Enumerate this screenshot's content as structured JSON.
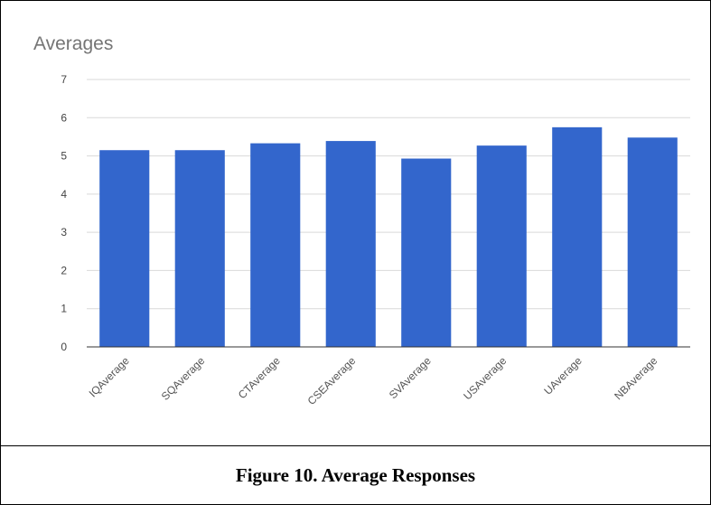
{
  "caption": "Figure 10.  Average Responses",
  "chart_data": {
    "type": "bar",
    "title": "Averages",
    "xlabel": "",
    "ylabel": "",
    "categories": [
      "IQAverage",
      "SQAverage",
      "CTAverage",
      "CSEAverage",
      "SVAverage",
      "USAverage",
      "UAverage",
      "NBAverage"
    ],
    "values": [
      5.15,
      5.15,
      5.33,
      5.39,
      4.93,
      5.27,
      5.75,
      5.48
    ],
    "ylim": [
      0,
      7
    ],
    "yticks": [
      "0",
      "1",
      "2",
      "3",
      "4",
      "5",
      "6",
      "7"
    ],
    "grid": true,
    "legend": "none",
    "bar_color": "#3366cc"
  }
}
